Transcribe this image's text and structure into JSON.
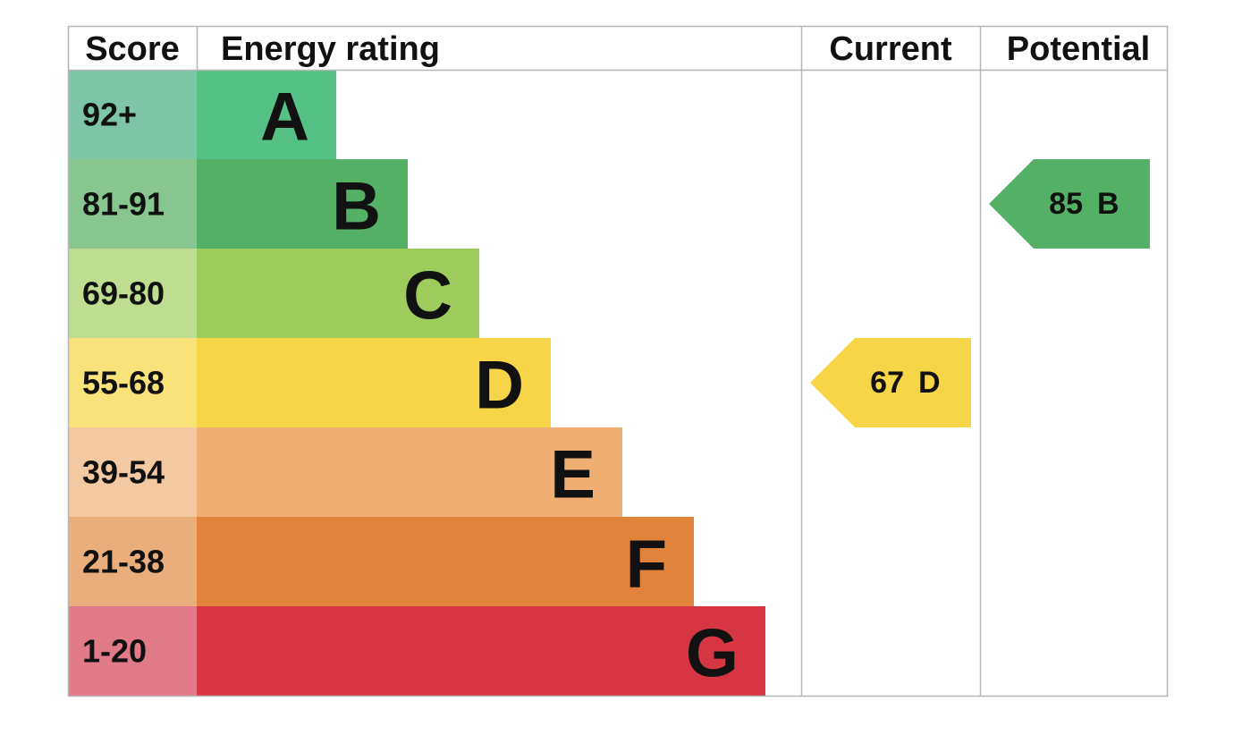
{
  "header": {
    "score": "Score",
    "rating": "Energy rating",
    "current": "Current",
    "potential": "Potential"
  },
  "bands": [
    {
      "score": "92+",
      "letter": "A",
      "color": "#55c185",
      "score_color": "#7ec4a6"
    },
    {
      "score": "81-91",
      "letter": "B",
      "color": "#53b064",
      "score_color": "#87c78f"
    },
    {
      "score": "69-80",
      "letter": "C",
      "color": "#9dcb5c",
      "score_color": "#bedd91"
    },
    {
      "score": "55-68",
      "letter": "D",
      "color": "#f7d548",
      "score_color": "#fae27a"
    },
    {
      "score": "39-54",
      "letter": "E",
      "color": "#efae72",
      "score_color": "#f4c8a1"
    },
    {
      "score": "21-38",
      "letter": "F",
      "color": "#e1833b",
      "score_color": "#eaae7c"
    },
    {
      "score": "1-20",
      "letter": "G",
      "color": "#d63642",
      "score_color": "#e17a89"
    }
  ],
  "current": {
    "value": 67,
    "letter": "D"
  },
  "potential": {
    "value": 85,
    "letter": "B"
  }
}
